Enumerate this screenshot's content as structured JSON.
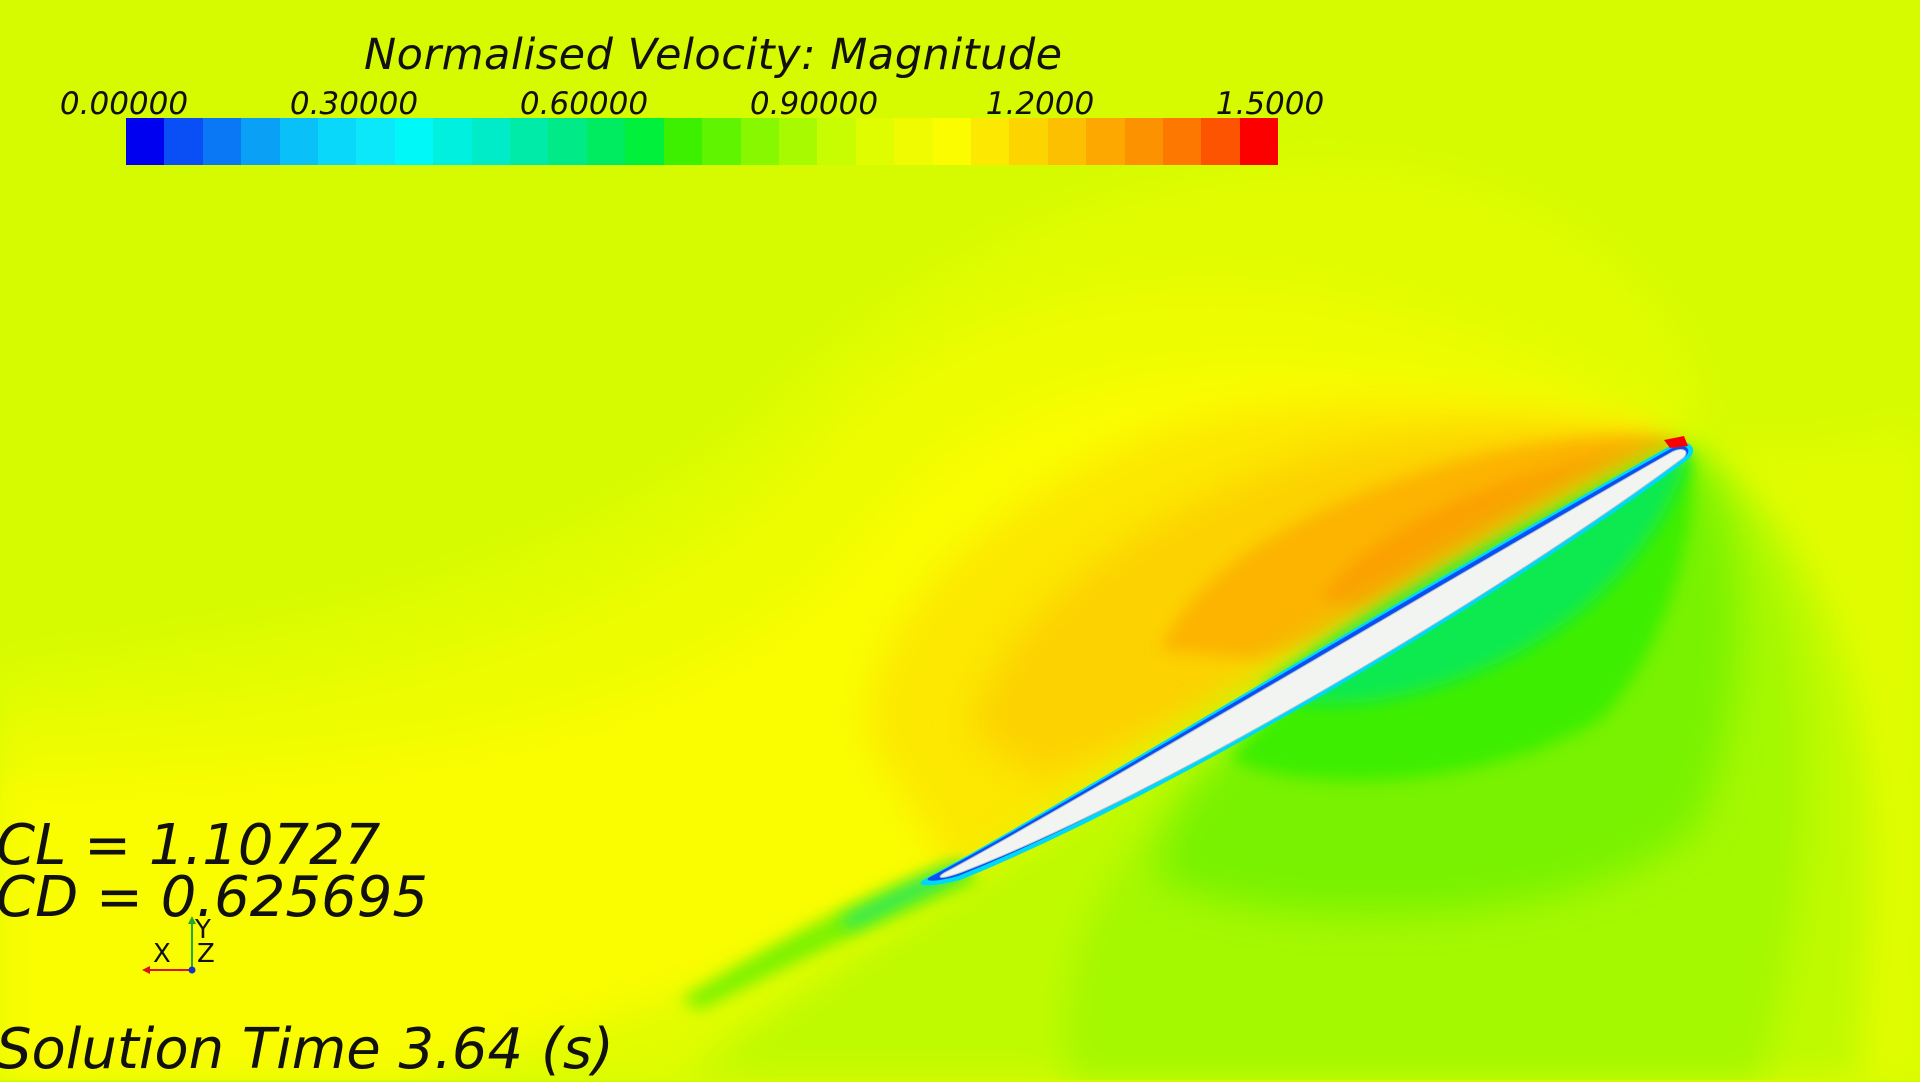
{
  "legend": {
    "title": "Normalised Velocity: Magnitude",
    "ticks": [
      {
        "label": "0.00000",
        "value": 0.0
      },
      {
        "label": "0.30000",
        "value": 0.3
      },
      {
        "label": "0.60000",
        "value": 0.6
      },
      {
        "label": "0.90000",
        "value": 0.9
      },
      {
        "label": "1.2000",
        "value": 1.2
      },
      {
        "label": "1.5000",
        "value": 1.5
      }
    ],
    "range": [
      0.0,
      1.5
    ],
    "colors": [
      "#0000f0",
      "#0a4ff5",
      "#0a78f5",
      "#0aa0f5",
      "#0ac0f8",
      "#0ad8fa",
      "#0ae8fa",
      "#00f8f8",
      "#00f0e0",
      "#00ecc8",
      "#00eaa8",
      "#00ea88",
      "#00ec60",
      "#00f03c",
      "#3cf000",
      "#60f400",
      "#88f800",
      "#a8fa00",
      "#c8fc00",
      "#e0fd00",
      "#f0fa00",
      "#fcfc00",
      "#fce800",
      "#fcd400",
      "#fcc000",
      "#fca800",
      "#fc9200",
      "#fc7800",
      "#fc5400",
      "#fc0000"
    ]
  },
  "annotations": {
    "cl": "CL = 1.10727",
    "cd": "CD = 0.625695",
    "solution_time": "Solution Time 3.64 (s)"
  },
  "triad": {
    "x_label": "X",
    "y_label": "Y",
    "z_label": "Z"
  },
  "scene": {
    "background_color": "#d6fb00",
    "airfoil_color": "#f2f4f2"
  }
}
